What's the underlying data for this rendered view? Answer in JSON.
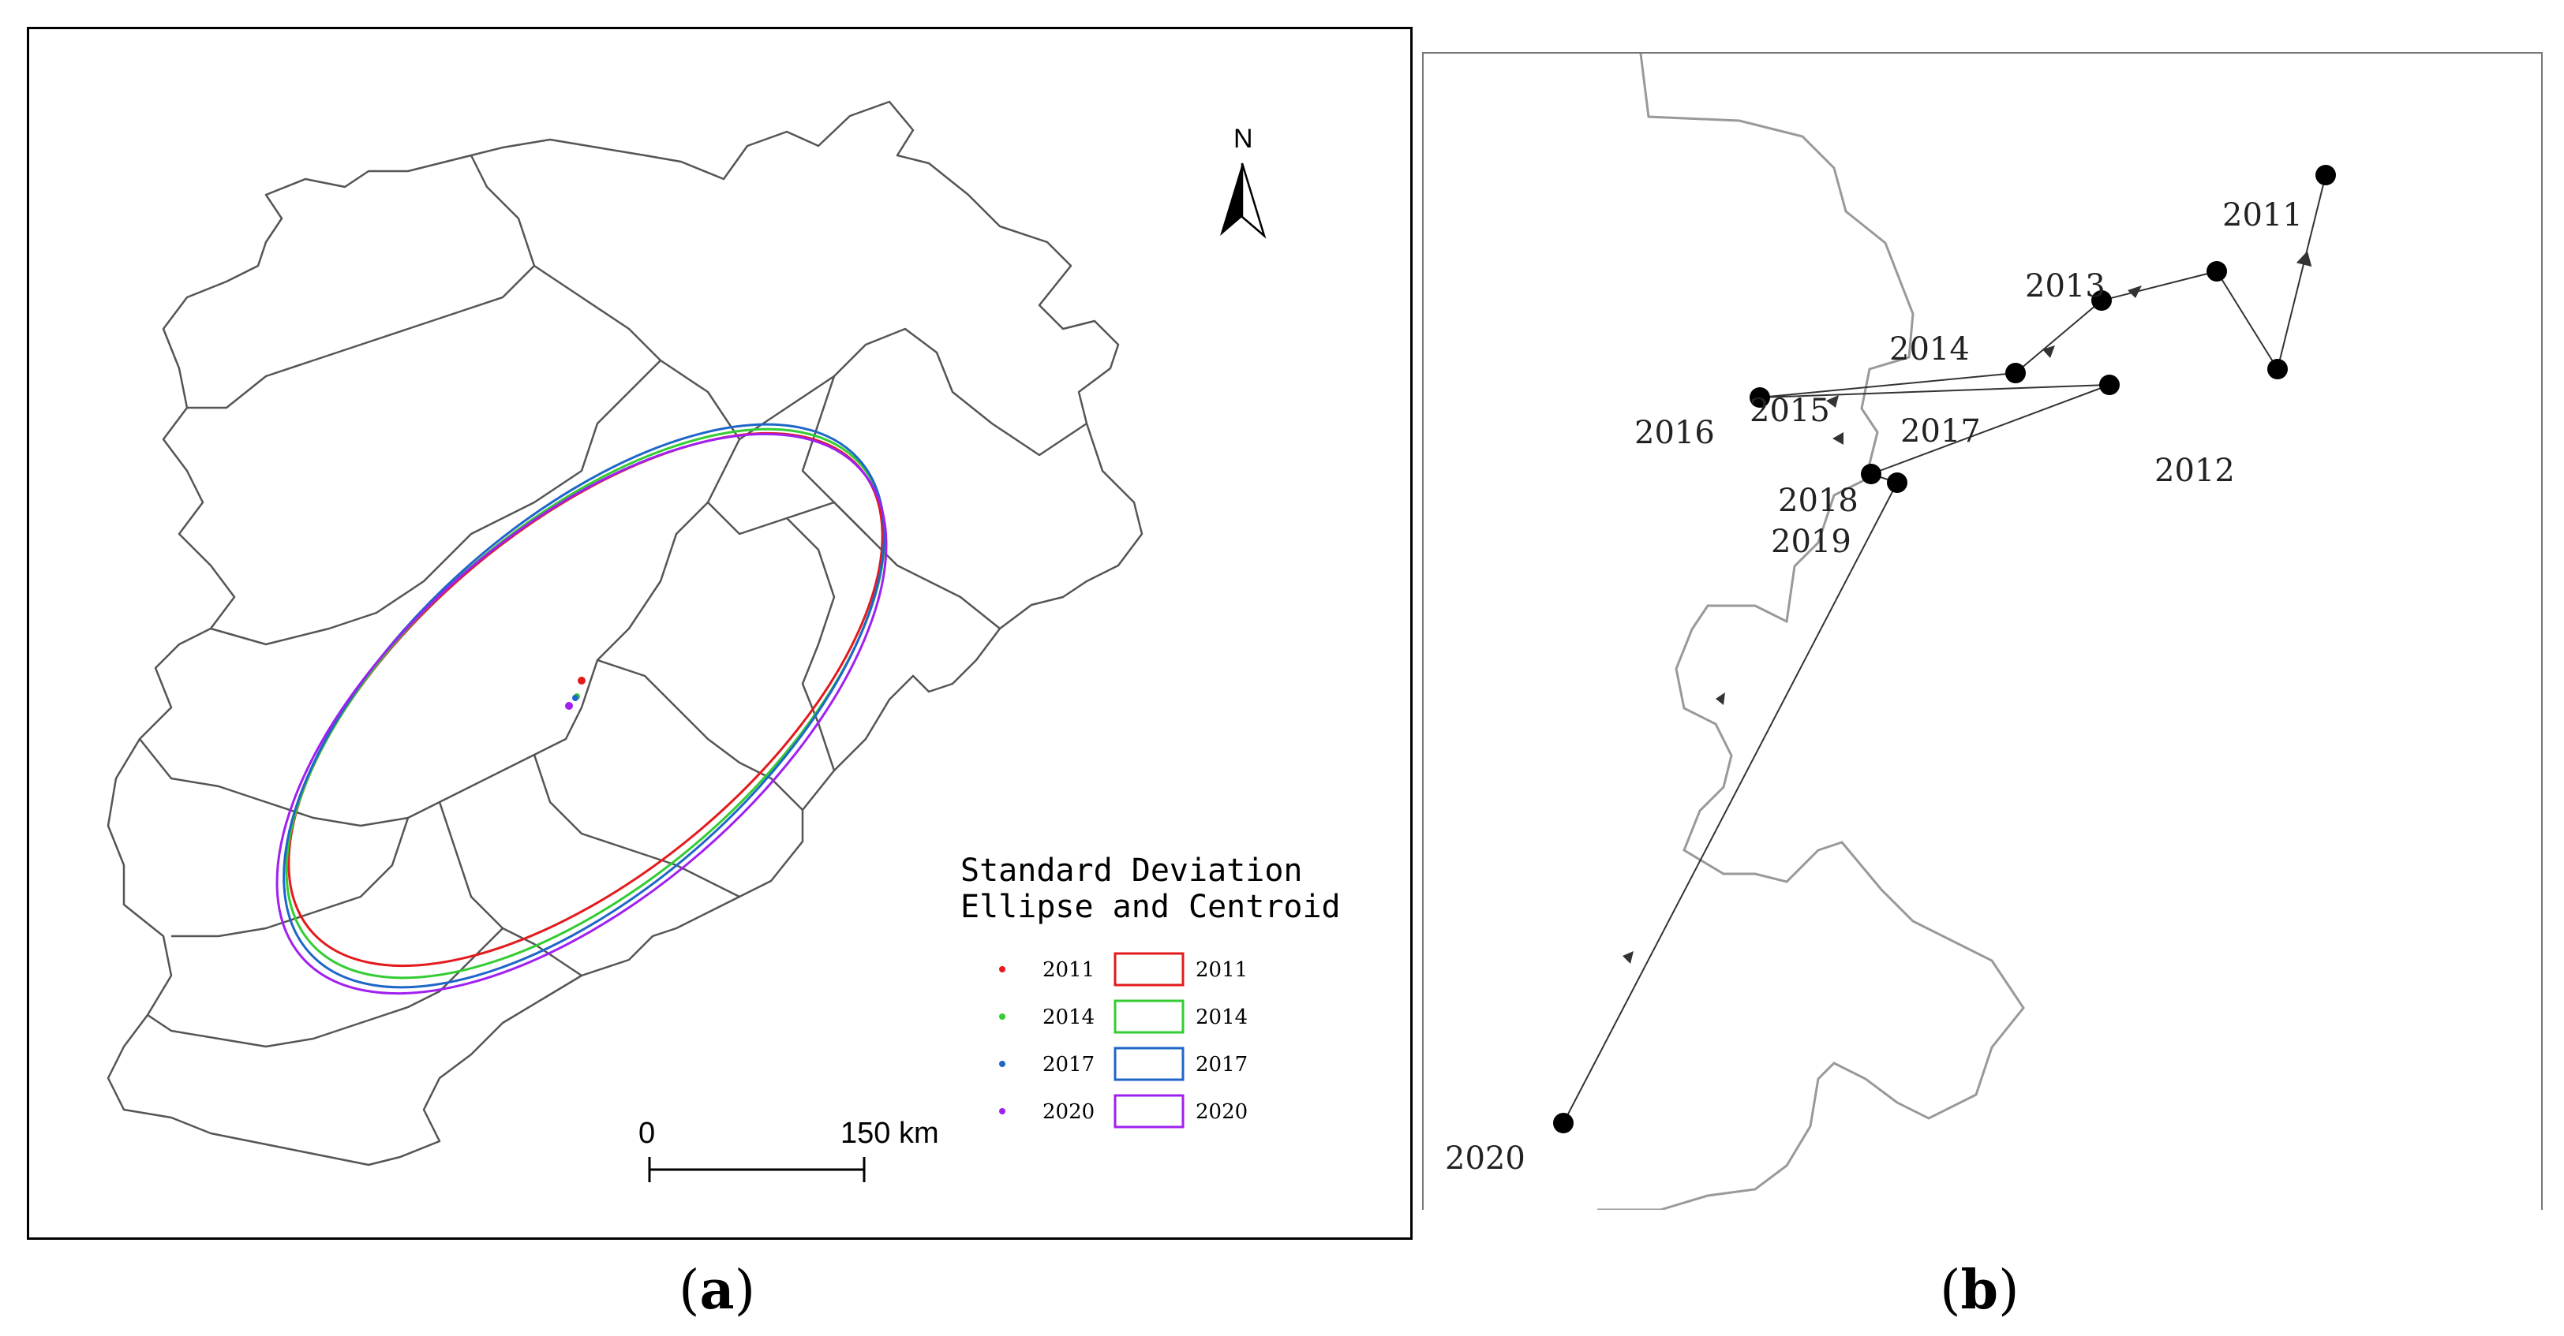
{
  "panel_a": {
    "caption": "a",
    "north_label": "N",
    "legend": {
      "title_line1": "Standard Deviation",
      "title_line2": "Ellipse and Centroid",
      "items": [
        {
          "year": "2011",
          "color": "#e31a1c"
        },
        {
          "year": "2014",
          "color": "#33cc33"
        },
        {
          "year": "2017",
          "color": "#1f66c9"
        },
        {
          "year": "2020",
          "color": "#a020f0"
        }
      ]
    },
    "scale": {
      "start": "0",
      "end": "150 km"
    }
  },
  "panel_b": {
    "caption": "b",
    "trajectory": [
      {
        "year": "2011"
      },
      {
        "year": "2012"
      },
      {
        "year": "2013"
      },
      {
        "year": "2014"
      },
      {
        "year": "2015"
      },
      {
        "year": "2016"
      },
      {
        "year": "2017"
      },
      {
        "year": "2018"
      },
      {
        "year": "2019"
      },
      {
        "year": "2020"
      }
    ]
  }
}
